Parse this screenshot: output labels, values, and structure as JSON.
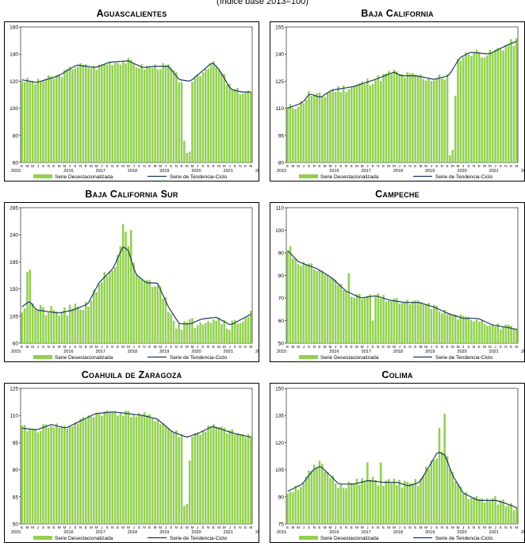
{
  "header_note": "(índice base 2013=100)",
  "legend": {
    "bars_label": "Serie Desestacionalizada",
    "line_label": "Serie de Tendencia-Ciclo",
    "bar_color": "#92d050",
    "line_color": "#1f3864"
  },
  "month_initials": [
    "E",
    "F",
    "M",
    "A",
    "M",
    "J",
    "J",
    "A",
    "S",
    "O",
    "N",
    "D"
  ],
  "years": [
    "2015",
    "2016",
    "2017",
    "2018",
    "2019",
    "2020",
    "2021",
    "2022"
  ],
  "chart_data": [
    {
      "type": "bar",
      "title": "Aguascalientes",
      "ylim": [
        60,
        160
      ],
      "yticks": [
        60,
        80,
        100,
        120,
        140,
        160
      ],
      "start": "2015-01",
      "trend": [
        [
          0,
          121
        ],
        [
          8,
          119
        ],
        [
          20,
          124
        ],
        [
          30,
          132
        ],
        [
          40,
          130
        ],
        [
          48,
          134
        ],
        [
          58,
          135
        ],
        [
          66,
          130
        ],
        [
          72,
          131
        ],
        [
          80,
          131
        ],
        [
          86,
          121
        ],
        [
          92,
          120
        ],
        [
          98,
          127
        ],
        [
          104,
          134
        ],
        [
          108,
          128
        ],
        [
          114,
          114
        ],
        [
          120,
          112
        ],
        [
          125,
          112
        ]
      ],
      "outliers": [
        [
          88,
          97
        ],
        [
          90,
          67
        ],
        [
          91,
          68
        ],
        [
          89,
          76
        ]
      ],
      "noise_seed": 3,
      "noise_amp": 2.5
    },
    {
      "type": "bar",
      "title": "Baja California",
      "ylim": [
        80,
        155
      ],
      "yticks": [
        80,
        95,
        110,
        125,
        140,
        155
      ],
      "start": "2015-01",
      "trend": [
        [
          0,
          110
        ],
        [
          8,
          113
        ],
        [
          12,
          118
        ],
        [
          18,
          116
        ],
        [
          24,
          120
        ],
        [
          36,
          122
        ],
        [
          48,
          126
        ],
        [
          58,
          130
        ],
        [
          62,
          128
        ],
        [
          70,
          128
        ],
        [
          80,
          126
        ],
        [
          88,
          128
        ],
        [
          94,
          138
        ],
        [
          100,
          141
        ],
        [
          110,
          140
        ],
        [
          120,
          145
        ],
        [
          125,
          147
        ]
      ],
      "outliers": [
        [
          88,
          115
        ],
        [
          89,
          84
        ],
        [
          90,
          87
        ],
        [
          91,
          117
        ]
      ],
      "noise_seed": 11,
      "noise_amp": 2.5
    },
    {
      "type": "bar",
      "title": "Baja California Sur",
      "ylim": [
        60,
        285
      ],
      "yticks": [
        60,
        105,
        150,
        195,
        240,
        285
      ],
      "start": "2015-01",
      "trend": [
        [
          0,
          120
        ],
        [
          4,
          130
        ],
        [
          8,
          115
        ],
        [
          20,
          110
        ],
        [
          28,
          115
        ],
        [
          36,
          125
        ],
        [
          42,
          160
        ],
        [
          50,
          185
        ],
        [
          55,
          220
        ],
        [
          58,
          215
        ],
        [
          62,
          175
        ],
        [
          68,
          160
        ],
        [
          74,
          160
        ],
        [
          80,
          120
        ],
        [
          86,
          92
        ],
        [
          92,
          92
        ],
        [
          98,
          100
        ],
        [
          106,
          103
        ],
        [
          114,
          90
        ],
        [
          120,
          100
        ],
        [
          125,
          108
        ]
      ],
      "outliers": [
        [
          3,
          178
        ],
        [
          4,
          182
        ],
        [
          55,
          258
        ],
        [
          57,
          245
        ],
        [
          59,
          248
        ],
        [
          84,
          82
        ],
        [
          85,
          84
        ]
      ],
      "noise_seed": 21,
      "noise_amp": 10
    },
    {
      "type": "bar",
      "title": "Campeche",
      "ylim": [
        50,
        110
      ],
      "yticks": [
        50,
        60,
        70,
        80,
        90,
        100,
        110
      ],
      "start": "2015-01",
      "trend": [
        [
          0,
          91
        ],
        [
          6,
          86
        ],
        [
          16,
          83
        ],
        [
          24,
          79
        ],
        [
          32,
          73
        ],
        [
          40,
          70
        ],
        [
          48,
          71
        ],
        [
          56,
          69
        ],
        [
          64,
          68
        ],
        [
          72,
          68
        ],
        [
          80,
          66
        ],
        [
          88,
          63
        ],
        [
          96,
          61
        ],
        [
          104,
          61
        ],
        [
          112,
          58
        ],
        [
          120,
          57
        ],
        [
          125,
          56
        ]
      ],
      "outliers": [
        [
          1,
          93
        ],
        [
          34,
          81
        ],
        [
          46,
          60
        ]
      ],
      "noise_seed": 31,
      "noise_amp": 1.5
    },
    {
      "type": "bar",
      "title": "Coahuila de Zaragoza",
      "ylim": [
        50,
        125
      ],
      "yticks": [
        50,
        65,
        80,
        95,
        110,
        125
      ],
      "start": "2015-01",
      "trend": [
        [
          0,
          103
        ],
        [
          8,
          102
        ],
        [
          16,
          105
        ],
        [
          24,
          103
        ],
        [
          32,
          107
        ],
        [
          40,
          111
        ],
        [
          50,
          112
        ],
        [
          58,
          111
        ],
        [
          66,
          110
        ],
        [
          74,
          108
        ],
        [
          82,
          101
        ],
        [
          90,
          98
        ],
        [
          96,
          100
        ],
        [
          104,
          104
        ],
        [
          110,
          102
        ],
        [
          116,
          100
        ],
        [
          125,
          98
        ]
      ],
      "outliers": [
        [
          88,
          72
        ],
        [
          89,
          60
        ],
        [
          90,
          61
        ],
        [
          91,
          85
        ]
      ],
      "noise_seed": 41,
      "noise_amp": 2
    },
    {
      "type": "bar",
      "title": "Colima",
      "ylim": [
        75,
        150
      ],
      "yticks": [
        75,
        90,
        105,
        120,
        135,
        150
      ],
      "start": "2015-01",
      "trend": [
        [
          0,
          93
        ],
        [
          8,
          97
        ],
        [
          14,
          105
        ],
        [
          18,
          107
        ],
        [
          22,
          103
        ],
        [
          28,
          97
        ],
        [
          36,
          97
        ],
        [
          44,
          99
        ],
        [
          52,
          98
        ],
        [
          60,
          98
        ],
        [
          66,
          96
        ],
        [
          72,
          98
        ],
        [
          78,
          108
        ],
        [
          82,
          115
        ],
        [
          86,
          113
        ],
        [
          90,
          102
        ],
        [
          96,
          92
        ],
        [
          104,
          88
        ],
        [
          114,
          88
        ],
        [
          120,
          86
        ],
        [
          125,
          84
        ]
      ],
      "outliers": [
        [
          18,
          110
        ],
        [
          44,
          109
        ],
        [
          51,
          109
        ],
        [
          83,
          128
        ],
        [
          86,
          136
        ]
      ],
      "noise_seed": 51,
      "noise_amp": 2.5
    }
  ]
}
